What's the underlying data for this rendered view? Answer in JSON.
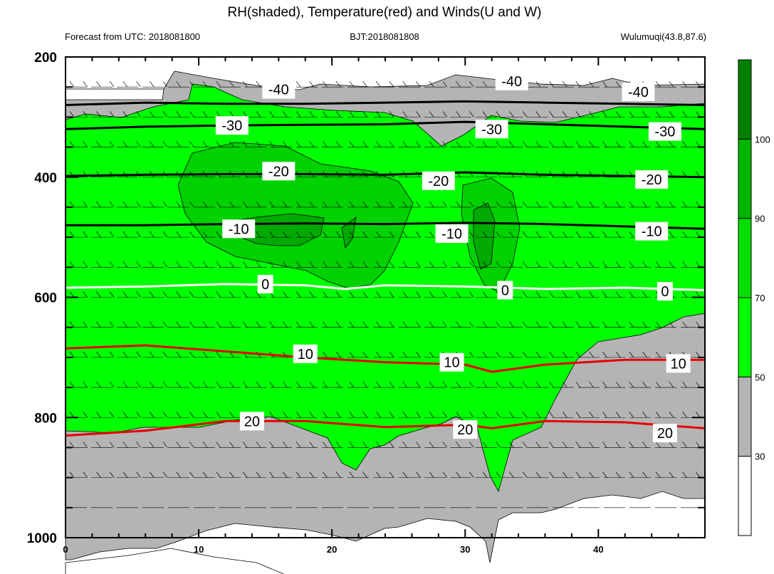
{
  "chart_data": {
    "type": "contour",
    "title": "RH(shaded), Temperature(red) and Winds(U and W)",
    "subtitle_left": "Forecast from UTC: 2018081800",
    "subtitle_center": "BJT:2018081808",
    "subtitle_right": "Wulumuqi(43.8,87.6)",
    "xlim": [
      0,
      48
    ],
    "ylim": [
      1000,
      200
    ],
    "x_ticks": [
      "0",
      "10",
      "20",
      "30",
      "40"
    ],
    "y_ticks": [
      "200",
      "400",
      "600",
      "800",
      "1000"
    ],
    "colorbar": {
      "levels": [
        "30",
        "50",
        "70",
        "90",
        "100"
      ],
      "colors": [
        "#ffffff",
        "#b4b4b4",
        "#00ff00",
        "#00e000",
        "#00b400",
        "#008200"
      ]
    },
    "temperature_contours": [
      {
        "level": -40,
        "label": "-40",
        "color": "#000000",
        "points": [
          [
            0,
            280
          ],
          [
            6,
            276
          ],
          [
            12,
            278
          ],
          [
            18,
            278
          ],
          [
            24,
            276
          ],
          [
            30,
            274
          ],
          [
            36,
            276
          ],
          [
            42,
            278
          ],
          [
            48,
            280
          ]
        ]
      },
      {
        "level": -30,
        "label": "-30",
        "color": "#000000",
        "points": [
          [
            0,
            320
          ],
          [
            6,
            316
          ],
          [
            12,
            314
          ],
          [
            18,
            313
          ],
          [
            24,
            312
          ],
          [
            30,
            308
          ],
          [
            36,
            312
          ],
          [
            42,
            316
          ],
          [
            48,
            320
          ]
        ]
      },
      {
        "level": -20,
        "label": "-20",
        "color": "#000000",
        "points": [
          [
            0,
            398
          ],
          [
            6,
            396
          ],
          [
            12,
            395
          ],
          [
            18,
            395
          ],
          [
            24,
            396
          ],
          [
            30,
            392
          ],
          [
            36,
            396
          ],
          [
            42,
            398
          ],
          [
            48,
            400
          ]
        ]
      },
      {
        "level": -10,
        "label": "-10",
        "color": "#000000",
        "points": [
          [
            0,
            480
          ],
          [
            6,
            480
          ],
          [
            12,
            478
          ],
          [
            18,
            477
          ],
          [
            24,
            478
          ],
          [
            30,
            476
          ],
          [
            36,
            478
          ],
          [
            42,
            482
          ],
          [
            48,
            486
          ]
        ]
      },
      {
        "level": 0,
        "label": "0",
        "color": "#ffffff",
        "points": [
          [
            0,
            584
          ],
          [
            6,
            582
          ],
          [
            12,
            578
          ],
          [
            18,
            580
          ],
          [
            21,
            586
          ],
          [
            24,
            580
          ],
          [
            30,
            582
          ],
          [
            36,
            586
          ],
          [
            42,
            584
          ],
          [
            48,
            588
          ]
        ]
      },
      {
        "level": 10,
        "label": "10",
        "color": "#e60000",
        "points": [
          [
            0,
            685
          ],
          [
            6,
            680
          ],
          [
            12,
            690
          ],
          [
            18,
            700
          ],
          [
            24,
            708
          ],
          [
            30,
            712
          ],
          [
            32,
            724
          ],
          [
            36,
            712
          ],
          [
            42,
            704
          ],
          [
            48,
            704
          ]
        ]
      },
      {
        "level": 20,
        "label": "20",
        "color": "#e60000",
        "points": [
          [
            0,
            830
          ],
          [
            6,
            822
          ],
          [
            12,
            806
          ],
          [
            18,
            806
          ],
          [
            24,
            816
          ],
          [
            30,
            812
          ],
          [
            32,
            818
          ],
          [
            36,
            806
          ],
          [
            42,
            808
          ],
          [
            48,
            818
          ]
        ]
      }
    ],
    "contour_labels": [
      {
        "text": "-40",
        "x": 16,
        "y": 254
      },
      {
        "text": "-40",
        "x": 33.5,
        "y": 240
      },
      {
        "text": "-40",
        "x": 43,
        "y": 258
      },
      {
        "text": "-30",
        "x": 12.5,
        "y": 314
      },
      {
        "text": "-30",
        "x": 32,
        "y": 320
      },
      {
        "text": "-30",
        "x": 45,
        "y": 324
      },
      {
        "text": "-20",
        "x": 16,
        "y": 390
      },
      {
        "text": "-20",
        "x": 28,
        "y": 406
      },
      {
        "text": "-20",
        "x": 44,
        "y": 404
      },
      {
        "text": "-10",
        "x": 13,
        "y": 486
      },
      {
        "text": "-10",
        "x": 29,
        "y": 494
      },
      {
        "text": "-10",
        "x": 44,
        "y": 490
      },
      {
        "text": "0",
        "x": 15,
        "y": 578
      },
      {
        "text": "0",
        "x": 33,
        "y": 588
      },
      {
        "text": "0",
        "x": 45,
        "y": 590
      },
      {
        "text": "10",
        "x": 18,
        "y": 694
      },
      {
        "text": "10",
        "x": 29,
        "y": 708
      },
      {
        "text": "10",
        "x": 46,
        "y": 710
      },
      {
        "text": "20",
        "x": 14,
        "y": 806
      },
      {
        "text": "20",
        "x": 30,
        "y": 820
      },
      {
        "text": "20",
        "x": 45,
        "y": 826
      }
    ]
  }
}
